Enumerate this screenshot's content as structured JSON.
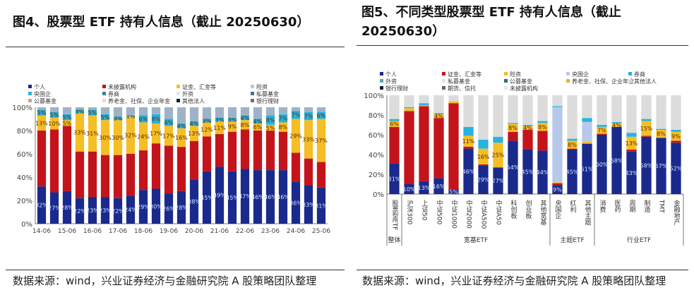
{
  "left": {
    "title": "图4、股票型 ETF 持有人信息（截止 20250630）",
    "source": "数据来源：wind，兴业证券经济与金融研究院 A 股策略团队整理"
  },
  "right": {
    "title": "图5、不同类型股票型 ETF 持有人信息（截止 20250630）",
    "source": "数据来源：wind，兴业证券经济与金融研究院 A 股策略团队整理"
  },
  "chart_data": [
    {
      "type": "bar",
      "stacked": true,
      "ylim": [
        0,
        100
      ],
      "yticks": [
        "0%",
        "20%",
        "40%",
        "60%",
        "80%",
        "100%"
      ],
      "legend": [
        "个人",
        "未披露机构",
        "证金、汇金等",
        "险资",
        "央国企",
        "券商",
        "外资",
        "私募基金",
        "公募基金",
        "养老金、社保、企业年金",
        "其他法人",
        "银行理财"
      ],
      "legend_colors": [
        "#1a2a8c",
        "#c4141b",
        "#f6be25",
        "#b7c9dc",
        "#27b3e0",
        "#3f7f99",
        "#e6e6e6",
        "#4d6f84",
        "#d69a7f",
        "#f3d4c8",
        "#0b1d3a",
        "#6f6f6f"
      ],
      "x_tick_labels": [
        "14-06",
        "15-06",
        "16-06",
        "17-06",
        "18-06",
        "19-06",
        "20-06",
        "21-06",
        "22-06",
        "23-06",
        "24-06",
        "25-06"
      ],
      "series": [
        {
          "name": "个人",
          "color": "#1a2a8c",
          "values": [
            32,
            27,
            28,
            22,
            23,
            23,
            22,
            24,
            29,
            30,
            26,
            28,
            38,
            45,
            49,
            45,
            47,
            46,
            46,
            46,
            36,
            33,
            31
          ]
        },
        {
          "name": "未披露机构",
          "color": "#c4141b",
          "values": [
            48,
            54,
            56,
            40,
            39,
            36,
            37,
            36,
            34,
            39,
            41,
            38,
            33,
            30,
            28,
            34,
            34,
            34,
            34,
            33,
            25,
            23,
            22
          ]
        },
        {
          "name": "证金、汇金等",
          "color": "#f6be25",
          "values": [
            13,
            10,
            5,
            33,
            31,
            30,
            30,
            32,
            24,
            17,
            17,
            16,
            13,
            12,
            11,
            9,
            8,
            6,
            5,
            8,
            29,
            33,
            37
          ]
        },
        {
          "name": "央国企",
          "color": "#27b3e0",
          "values": [
            5,
            5,
            5,
            3,
            5,
            5,
            3,
            1,
            6,
            8,
            6,
            4,
            4,
            3,
            3,
            3,
            4,
            4,
            8,
            7,
            7,
            7,
            6
          ]
        }
      ]
    },
    {
      "type": "bar",
      "stacked": true,
      "ylim": [
        0,
        100
      ],
      "yticks": [
        "0%",
        "20%",
        "40%",
        "60%",
        "80%",
        "100%"
      ],
      "legend": [
        "个人",
        "证金、汇金等",
        "险资",
        "央国企",
        "券商",
        "外资",
        "私募基金",
        "公募基金",
        "养老金、社保、企业年金",
        "其他法人",
        "银行理财",
        "期货、信托",
        "未披露机构"
      ],
      "legend_colors": [
        "#1a2a8c",
        "#c4141b",
        "#f6be25",
        "#b7c9ea",
        "#27b3e0",
        "#5aa5b8",
        "#e3e3e3",
        "#2f6c7d",
        "#e2b33a",
        "#d9d9d9",
        "#0b1d3a",
        "#666666",
        "#e8e8e8"
      ],
      "categories": [
        "股票型ETF",
        "沪深300",
        "上证50",
        "中证500",
        "中证1000",
        "中证2000",
        "中证A500",
        "中证A50",
        "科创板",
        "创业板",
        "其他宽基",
        "央国企",
        "红利",
        "其他主题",
        "消费",
        "医药",
        "周期",
        "制造",
        "TMT",
        "金融地产"
      ],
      "groups": [
        {
          "label": "整体",
          "count": 1
        },
        {
          "label": "宽基ETF",
          "count": 10
        },
        {
          "label": "主题ETF",
          "count": 3
        },
        {
          "label": "行业ETF",
          "count": 6
        }
      ],
      "series": [
        {
          "name": "个人",
          "color": "#1a2a8c",
          "values": [
            31,
            10,
            13,
            16,
            5,
            46,
            29,
            27,
            54,
            45,
            44,
            9,
            45,
            51,
            60,
            68,
            43,
            58,
            57,
            52
          ]
        },
        {
          "name": "证金、汇金等",
          "color": "#c4141b",
          "values": [
            37,
            74,
            76,
            61,
            87,
            2,
            1,
            0,
            9,
            20,
            20,
            2,
            1,
            0,
            1,
            0,
            2,
            1,
            0,
            2
          ]
        },
        {
          "name": "险资",
          "color": "#f6be25",
          "values": [
            6,
            3,
            1,
            4,
            2,
            11,
            16,
            25,
            8,
            4,
            8,
            1,
            8,
            2,
            7,
            4,
            13,
            15,
            8,
            9
          ]
        },
        {
          "name": "央国企",
          "color": "#b7c9ea",
          "values": [
            0,
            0,
            0,
            0,
            0,
            0,
            0,
            0,
            0,
            0,
            0,
            76,
            0,
            20,
            0,
            0,
            0,
            0,
            0,
            0
          ]
        },
        {
          "name": "券商",
          "color": "#27b3e0",
          "values": [
            2,
            1,
            2,
            1,
            0,
            9,
            9,
            6,
            1,
            1,
            2,
            1,
            2,
            4,
            2,
            1,
            4,
            2,
            1,
            2
          ]
        },
        {
          "name": "未披露机构",
          "color": "#dcdcdc",
          "values": [
            24,
            12,
            8,
            18,
            6,
            32,
            45,
            42,
            28,
            30,
            26,
            11,
            44,
            23,
            30,
            27,
            38,
            24,
            34,
            35
          ]
        }
      ]
    }
  ]
}
